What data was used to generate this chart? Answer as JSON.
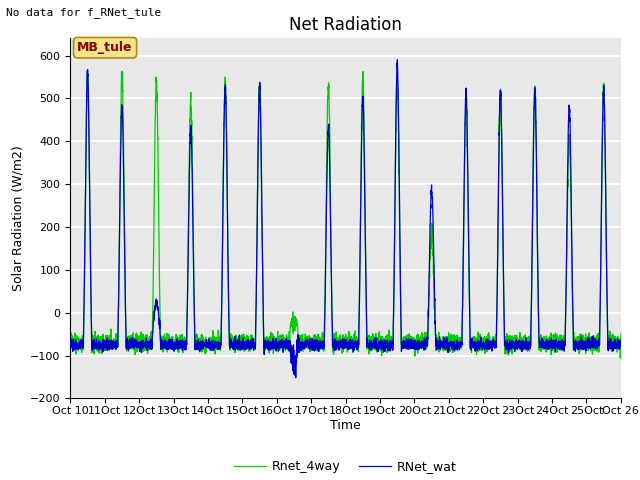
{
  "title": "Net Radiation",
  "xlabel": "Time",
  "ylabel": "Solar Radiation (W/m2)",
  "top_left_text": "No data for f_RNet_tule",
  "legend_box_text": "MB_tule",
  "legend_box_color": "#f0e68c",
  "legend_box_text_color": "#8b0000",
  "legend_box_edge_color": "#b8860b",
  "line1_label": "RNet_wat",
  "line1_color": "#0000cc",
  "line2_label": "Rnet_4way",
  "line2_color": "#00cc00",
  "ylim": [
    -200,
    640
  ],
  "yticks": [
    -200,
    -100,
    0,
    100,
    200,
    300,
    400,
    500,
    600
  ],
  "plot_bg_color": "#e8e8e8",
  "fig_bg_color": "#ffffff",
  "grid_color": "#ffffff",
  "num_days": 16,
  "start_day": 10,
  "points_per_day": 288,
  "title_fontsize": 12,
  "axis_label_fontsize": 9,
  "tick_label_fontsize": 8,
  "legend_fontsize": 9,
  "linewidth": 0.9
}
